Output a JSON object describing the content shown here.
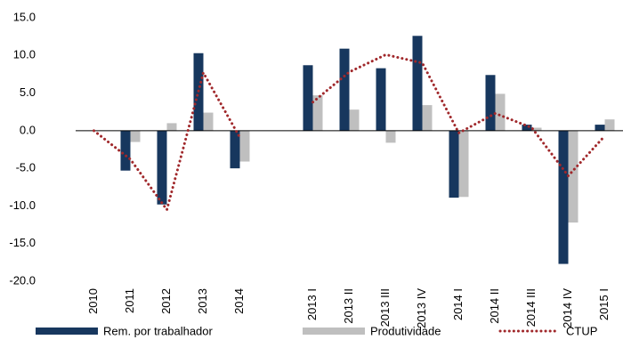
{
  "chart_data": {
    "type": "bar_line",
    "categories": [
      "2010",
      "2011",
      "2012",
      "2013",
      "2014",
      null,
      "2013 I",
      "2013 II",
      "2013 III",
      "2013 IV",
      "2014 I",
      "2014 II",
      "2014 III",
      "2014 IV",
      "2015 I"
    ],
    "series": [
      {
        "name": "Rem. por trabalhador",
        "type": "bar",
        "color": "#17375e",
        "values": [
          0,
          -5.3,
          -9.8,
          10.3,
          -5.0,
          null,
          8.7,
          10.9,
          8.3,
          12.6,
          -8.9,
          7.4,
          0.8,
          -17.7,
          0.8
        ]
      },
      {
        "name": "Produtividade",
        "type": "bar",
        "color": "#bfbfbf",
        "values": [
          0,
          -1.5,
          1.0,
          2.4,
          -4.1,
          null,
          4.7,
          2.8,
          -1.6,
          3.4,
          -8.8,
          4.9,
          0.4,
          -12.2,
          1.5
        ]
      },
      {
        "name": "CTUP",
        "type": "line",
        "color": "#a0282b",
        "values": [
          0,
          -3.8,
          -10.5,
          7.7,
          -0.9,
          null,
          3.8,
          7.8,
          10.1,
          9.0,
          -0.3,
          2.3,
          0.4,
          -6.0,
          -0.7
        ]
      }
    ],
    "ylim": [
      -20,
      15
    ],
    "yticks": [
      {
        "value": -20,
        "label": "-20.0"
      },
      {
        "value": -15,
        "label": "-15.0"
      },
      {
        "value": -10,
        "label": "-10.0"
      },
      {
        "value": -5,
        "label": "-5.0"
      },
      {
        "value": 0,
        "label": "0.0"
      },
      {
        "value": 5,
        "label": "5.0"
      },
      {
        "value": 10,
        "label": "10.0"
      },
      {
        "value": 15,
        "label": "15.0"
      }
    ],
    "grid": false
  }
}
